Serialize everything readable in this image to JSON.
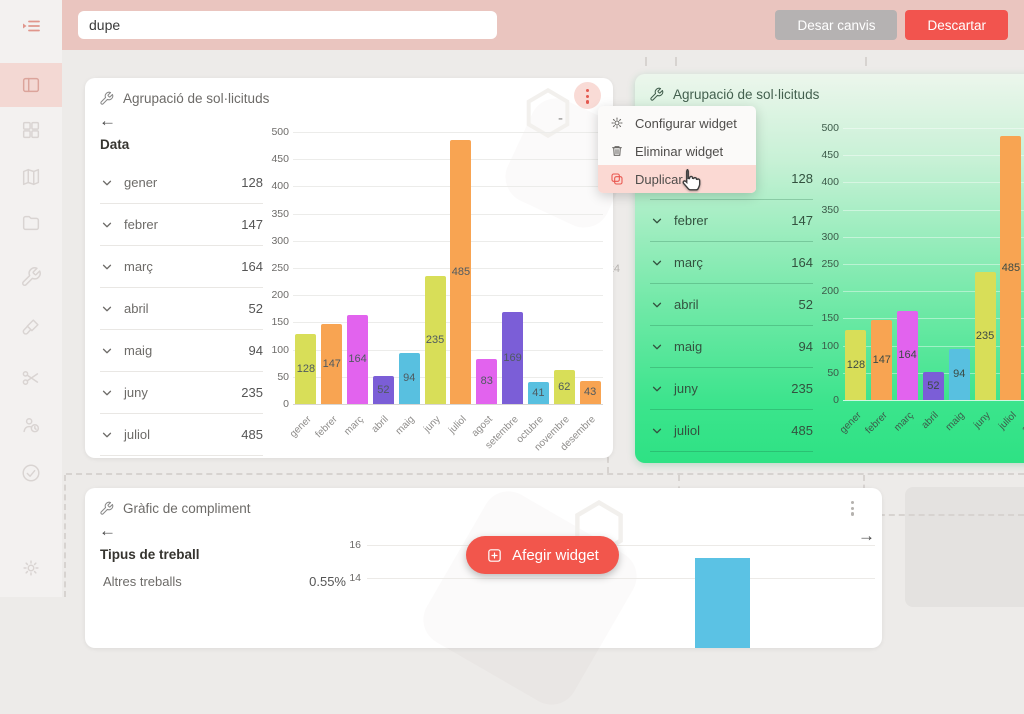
{
  "topbar": {
    "name_input": "dupe",
    "save_label": "Desar canvis",
    "discard_label": "Descartar"
  },
  "sidebar": {
    "items": [
      "dashboard",
      "widgets-grid",
      "map",
      "folder",
      "tools-wrench",
      "paintbrush",
      "scissors",
      "user-history",
      "check-circle",
      "settings"
    ],
    "active_item": "dashboard"
  },
  "canvas": {
    "grid_size_label": "768x4",
    "add_widget_label": "Afegir widget",
    "accent_color": "#f2564c"
  },
  "ui": {
    "back_arrow": "←",
    "forward_arrow": "→",
    "collapse_dash": "-"
  },
  "context_menu": {
    "highlight_color": "#fbd9d3",
    "items": [
      {
        "icon": "gear-icon",
        "label": "Configurar widget",
        "highlighted": false
      },
      {
        "icon": "trash-icon",
        "label": "Eliminar widget",
        "highlighted": false
      },
      {
        "icon": "duplicate-icon",
        "label": "Duplicar",
        "highlighted": true
      }
    ]
  },
  "widgets": {
    "requests": {
      "title": "Agrupació de sol·licituds",
      "list_header": "Data",
      "list_rows": [
        {
          "label": "gener",
          "value": "128"
        },
        {
          "label": "febrer",
          "value": "147"
        },
        {
          "label": "març",
          "value": "164"
        },
        {
          "label": "abril",
          "value": "52"
        },
        {
          "label": "maig",
          "value": "94"
        },
        {
          "label": "juny",
          "value": "235"
        },
        {
          "label": "juliol",
          "value": "485"
        }
      ],
      "chart_data": {
        "type": "bar",
        "categories": [
          "gener",
          "febrer",
          "març",
          "abril",
          "maig",
          "juny",
          "juliol",
          "agost",
          "setembre",
          "octubre",
          "novembre",
          "desembre"
        ],
        "values": [
          128,
          147,
          164,
          52,
          94,
          235,
          485,
          83,
          169,
          41,
          62,
          43
        ],
        "ylim": [
          0,
          500
        ],
        "ytick_step": 50,
        "palette": [
          "#d8de58",
          "#f8a452",
          "#e263ee",
          "#7b5ed7",
          "#58c0e0"
        ],
        "grid": true,
        "value_labels": true
      }
    },
    "requests_copy": {
      "title": "Agrupació de sol·licituds",
      "tint_top": "#ecf6ec",
      "tint_bottom": "#2ee284"
    },
    "compliance": {
      "title": "Gràfic de compliment",
      "list_header": "Tipus de treball",
      "list_rows": [
        {
          "label": "Altres treballs",
          "value": "0.55%"
        }
      ],
      "chart_data": {
        "type": "bar",
        "visible_yticks": [
          16,
          14
        ],
        "visible_bar_value": 15.2,
        "bar_color": "#5bc2e4"
      }
    }
  }
}
